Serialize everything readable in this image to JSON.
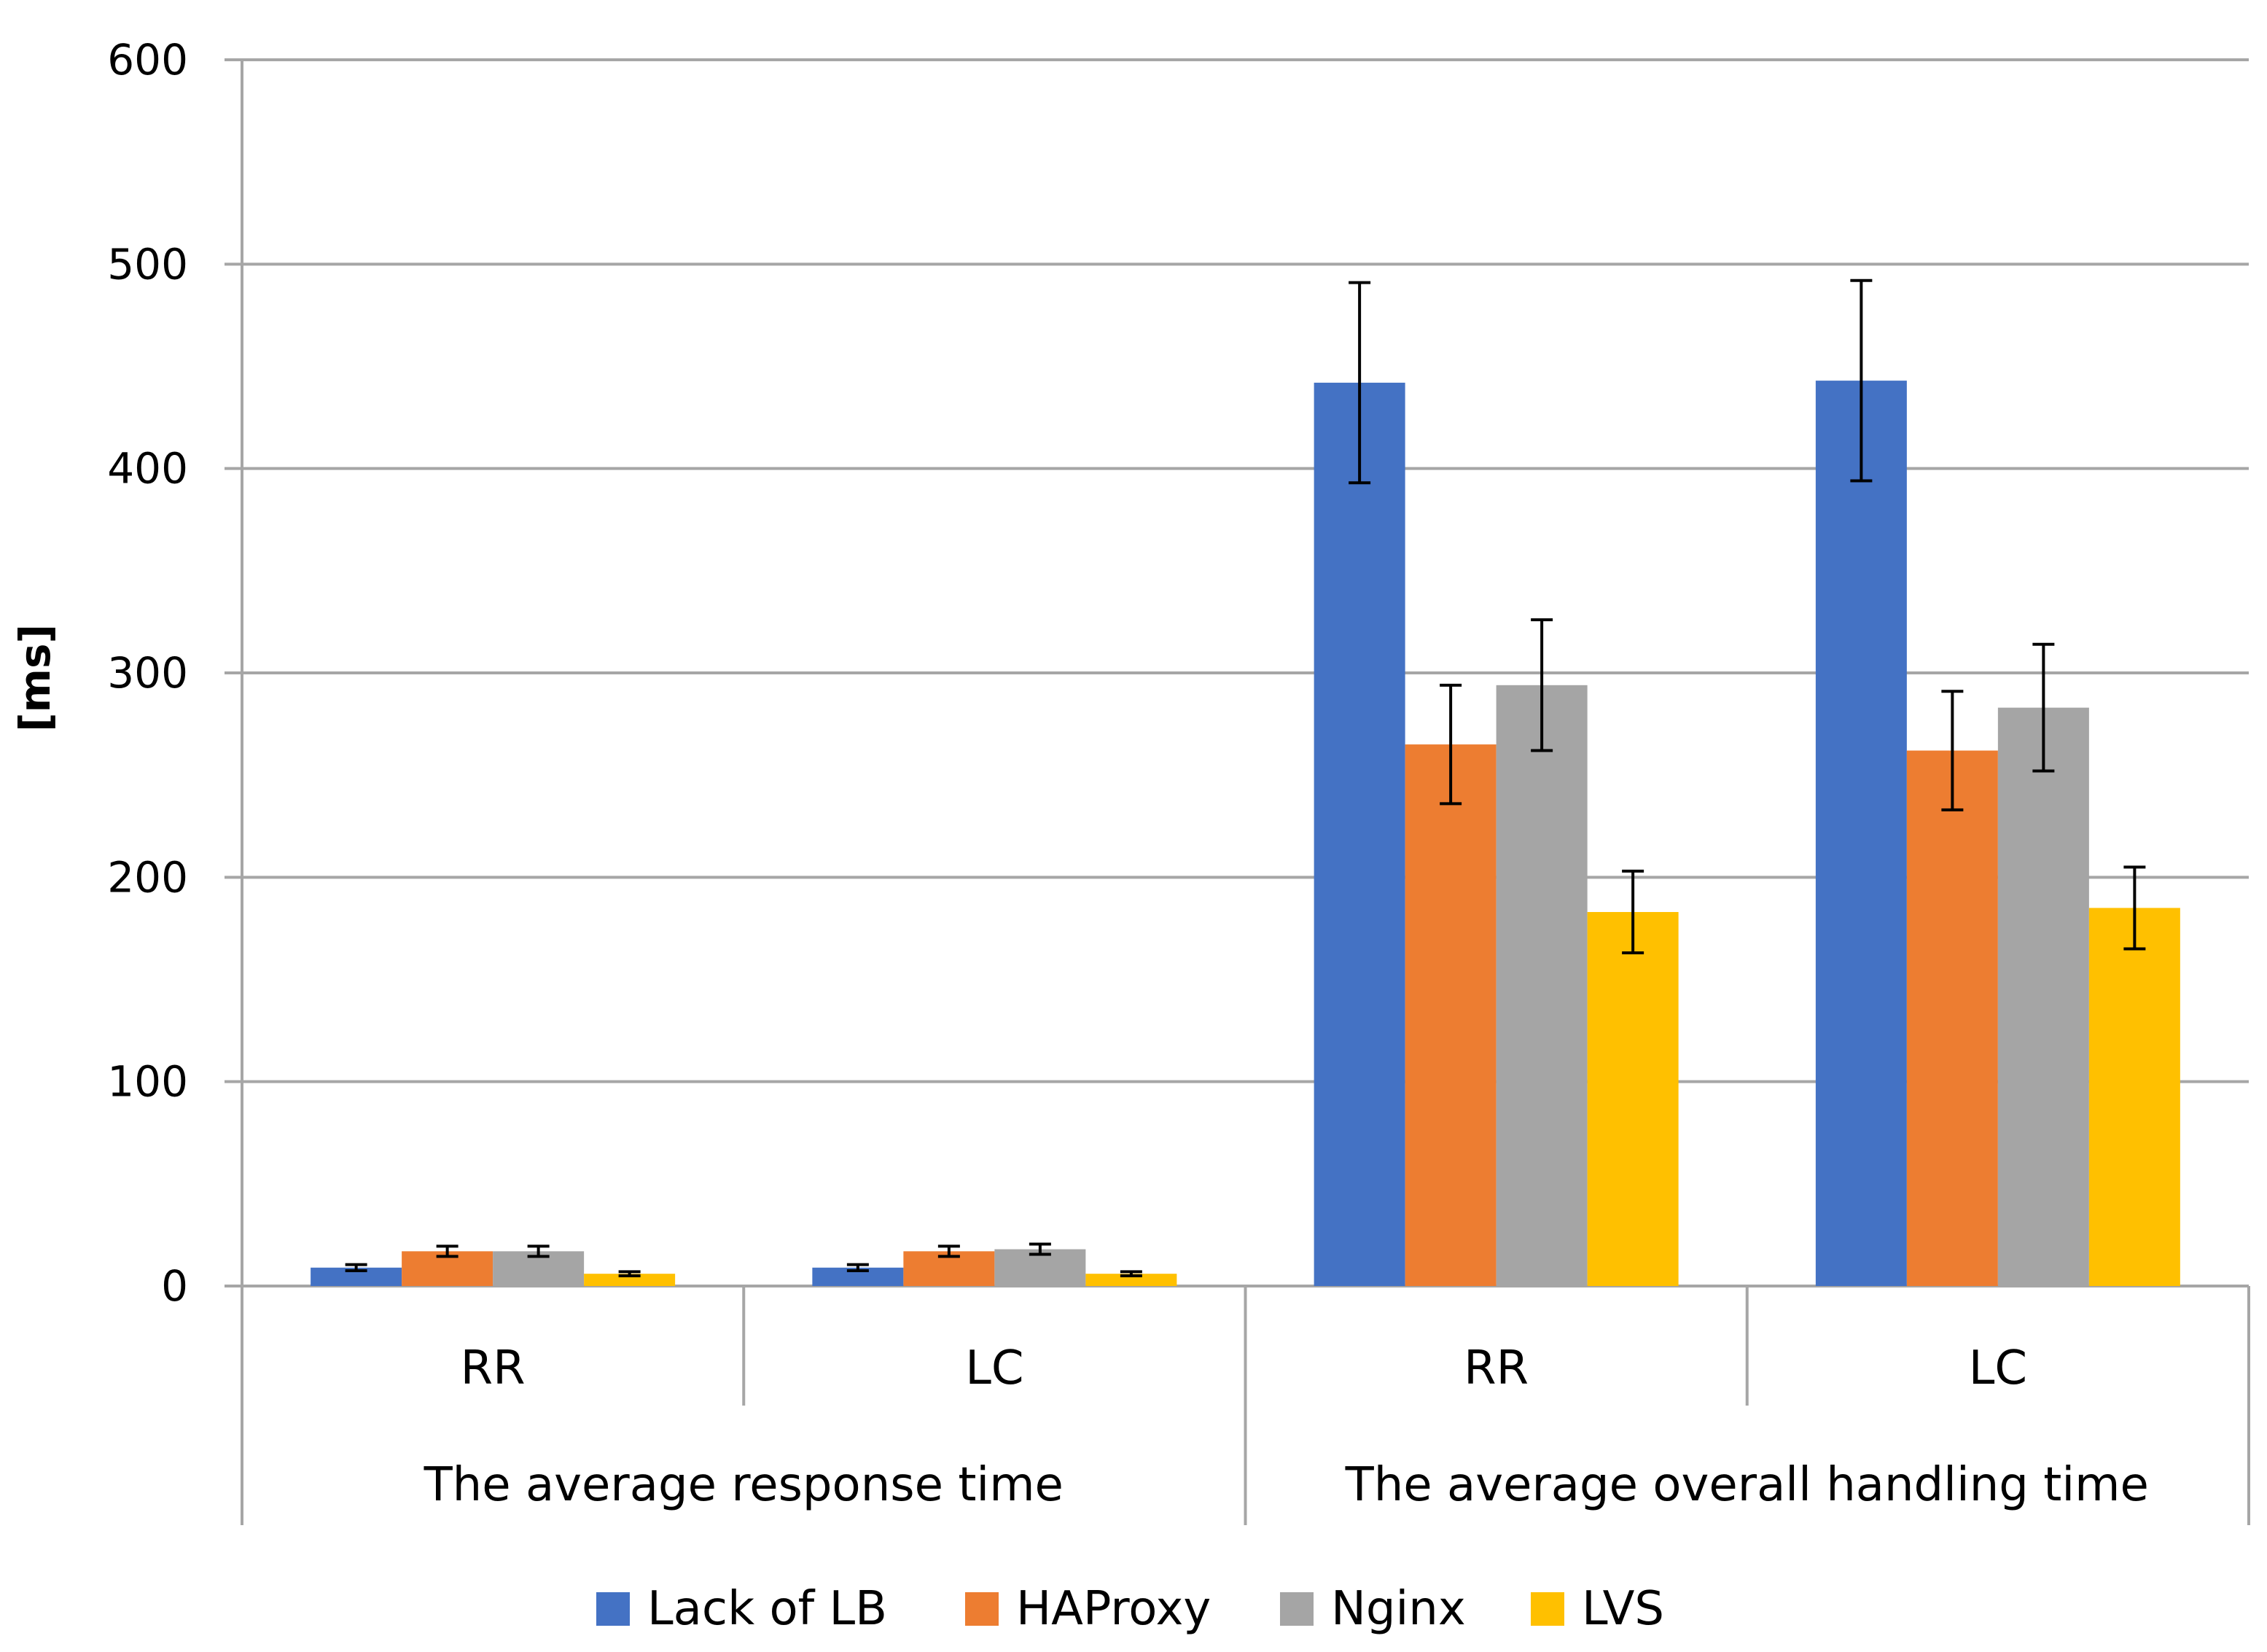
{
  "chart_data": {
    "type": "bar",
    "title": "",
    "xlabel": "",
    "ylabel": "[ms]",
    "ylim": [
      0,
      600
    ],
    "yticks": [
      0,
      100,
      200,
      300,
      400,
      500,
      600
    ],
    "grid": true,
    "legend_position": "bottom",
    "groups": [
      {
        "label": "The average response time",
        "categories": [
          "RR",
          "LC"
        ]
      },
      {
        "label": "The average overall handling time",
        "categories": [
          "RR",
          "LC"
        ]
      }
    ],
    "series": [
      {
        "name": "Lack of LB",
        "color": "#4472C4",
        "values": [
          9,
          9,
          442,
          443
        ],
        "errors": [
          1.5,
          1.5,
          49,
          49
        ]
      },
      {
        "name": "HAProxy",
        "color": "#ED7D31",
        "values": [
          17,
          17,
          265,
          262
        ],
        "errors": [
          2.5,
          2.5,
          29,
          29
        ]
      },
      {
        "name": "Nginx",
        "color": "#A5A5A5",
        "values": [
          17,
          18,
          294,
          283
        ],
        "errors": [
          2.5,
          2.5,
          32,
          31
        ]
      },
      {
        "name": "LVS",
        "color": "#FFC000",
        "values": [
          6,
          6,
          183,
          185
        ],
        "errors": [
          1,
          1,
          20,
          20
        ]
      }
    ]
  }
}
